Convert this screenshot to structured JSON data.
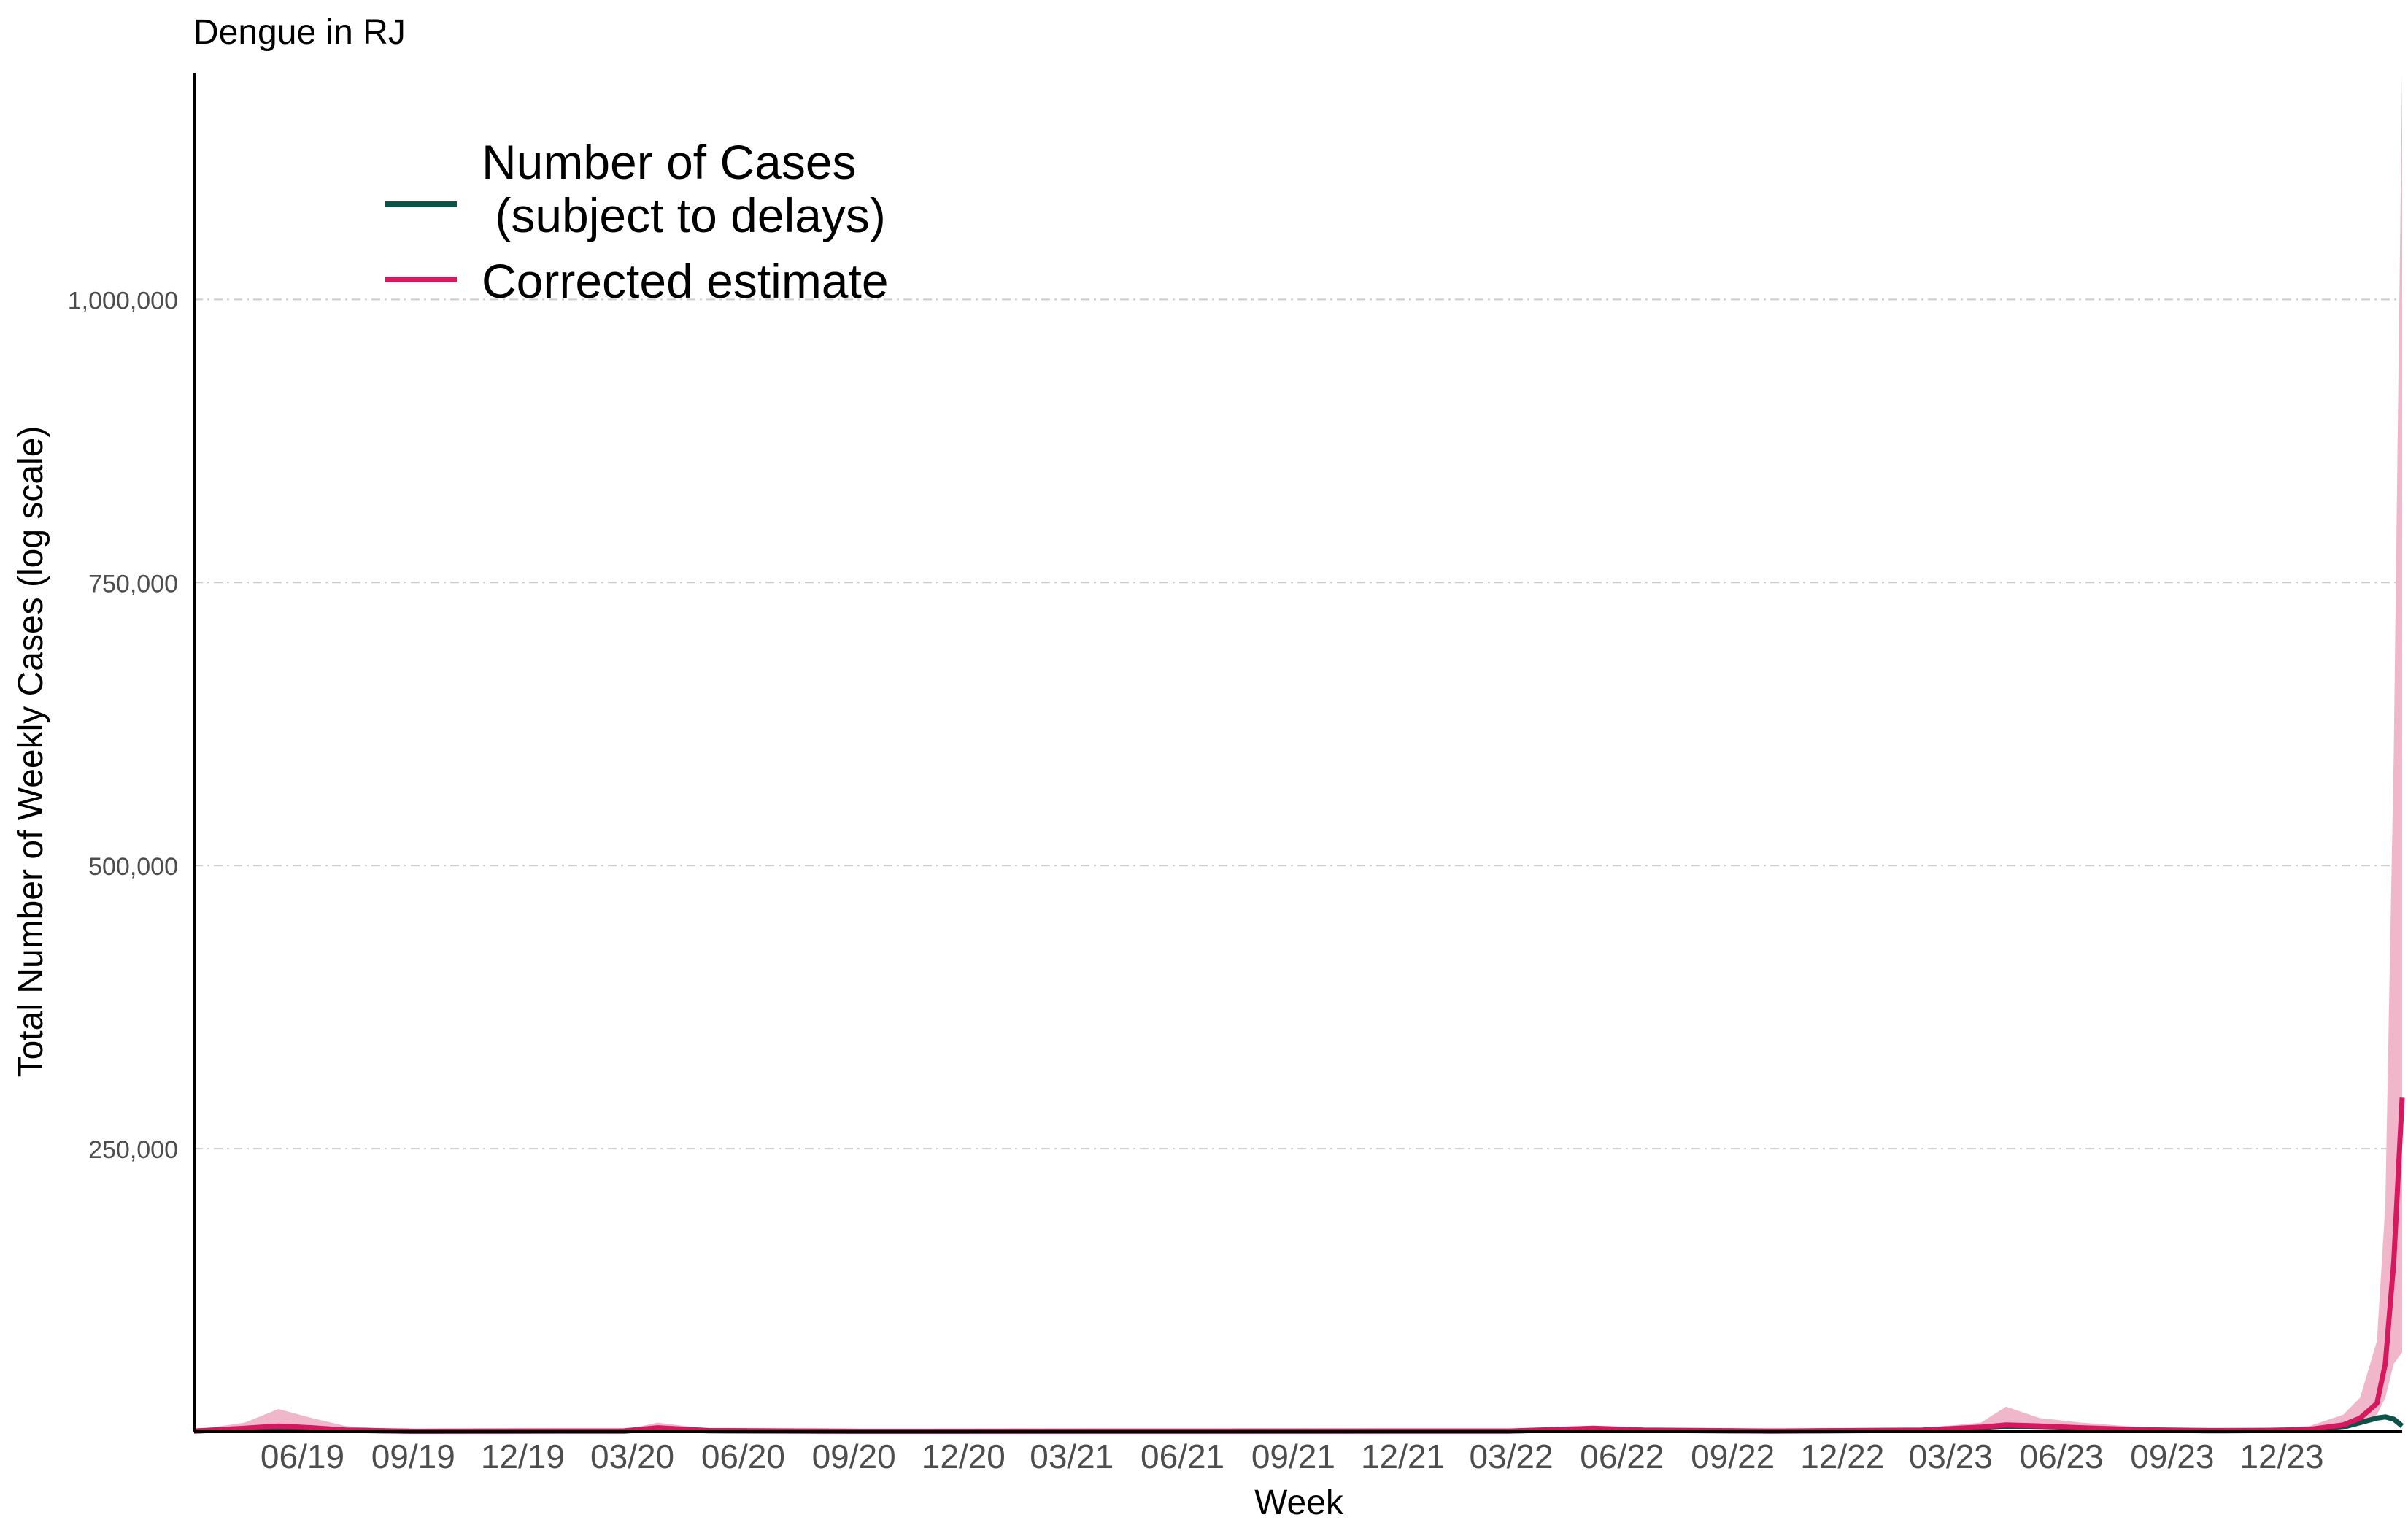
{
  "chart_data": {
    "type": "line",
    "title": "Dengue in RJ",
    "xlabel": "Week",
    "ylabel": "Total Number of Weekly Cases (log scale)",
    "x_tick_labels": [
      "06/19",
      "09/19",
      "12/19",
      "03/20",
      "06/20",
      "09/20",
      "12/20",
      "03/21",
      "06/21",
      "09/21",
      "12/21",
      "03/22",
      "06/22",
      "09/22",
      "12/22",
      "03/23",
      "06/23",
      "09/23",
      "12/23"
    ],
    "x_tick_dates": [
      "2019-06-01",
      "2019-09-01",
      "2019-12-01",
      "2020-03-01",
      "2020-06-01",
      "2020-09-01",
      "2020-12-01",
      "2021-03-01",
      "2021-06-01",
      "2021-09-01",
      "2021-12-01",
      "2022-03-01",
      "2022-06-01",
      "2022-09-01",
      "2022-12-01",
      "2023-03-01",
      "2023-06-01",
      "2023-09-01",
      "2023-12-01"
    ],
    "xlim": [
      "2019-03-03",
      "2024-03-10"
    ],
    "y_ticks": [
      250000,
      500000,
      750000,
      1000000
    ],
    "y_tick_labels": [
      "250,000",
      "500,000",
      "750,000",
      "1,000,000"
    ],
    "ylim": [
      0,
      1200000
    ],
    "grid": "horizontal dashed",
    "legend_position": "top-left",
    "colors": {
      "cases": "#0d5147",
      "estimate": "#d6185f",
      "band": "#f0b7cb",
      "grid": "#cccccc",
      "axis": "#000000"
    },
    "series": [
      {
        "name": "Number of Cases\n (subject to delays)",
        "x": [
          "2019-03-03",
          "2019-04-14",
          "2019-05-12",
          "2019-06-09",
          "2019-07-07",
          "2019-09-01",
          "2020-02-23",
          "2020-03-22",
          "2020-05-03",
          "2020-09-06",
          "2022-02-27",
          "2022-05-08",
          "2022-06-19",
          "2022-10-02",
          "2023-02-05",
          "2023-03-26",
          "2023-04-16",
          "2023-05-14",
          "2023-06-18",
          "2023-08-06",
          "2023-10-01",
          "2023-11-19",
          "2023-12-24",
          "2024-01-21",
          "2024-02-04",
          "2024-02-18",
          "2024-02-25",
          "2024-03-03",
          "2024-03-10"
        ],
        "values": [
          500,
          2500,
          3500,
          2500,
          1200,
          300,
          500,
          2500,
          800,
          300,
          500,
          2500,
          1200,
          500,
          1200,
          3000,
          4500,
          4000,
          3000,
          1500,
          800,
          1000,
          1500,
          4000,
          8000,
          12000,
          13000,
          11000,
          5000
        ]
      },
      {
        "name": "Corrected estimate",
        "x": [
          "2019-03-03",
          "2019-04-14",
          "2019-05-12",
          "2019-06-09",
          "2019-07-07",
          "2019-09-01",
          "2020-02-23",
          "2020-03-22",
          "2020-05-03",
          "2020-09-06",
          "2022-02-27",
          "2022-05-08",
          "2022-06-19",
          "2022-10-02",
          "2023-02-05",
          "2023-03-26",
          "2023-04-16",
          "2023-05-14",
          "2023-06-18",
          "2023-08-06",
          "2023-10-01",
          "2023-11-19",
          "2023-12-24",
          "2024-01-21",
          "2024-02-04",
          "2024-02-18",
          "2024-02-25",
          "2024-03-03",
          "2024-03-10"
        ],
        "values": [
          600,
          3000,
          5000,
          3500,
          1500,
          400,
          700,
          3500,
          1000,
          400,
          600,
          3000,
          1500,
          600,
          1500,
          4000,
          6000,
          5000,
          3500,
          1800,
          1000,
          1200,
          2000,
          6000,
          12000,
          25000,
          60000,
          150000,
          295000
        ],
        "lower": [
          300,
          1500,
          2500,
          1800,
          800,
          200,
          300,
          1500,
          500,
          200,
          300,
          1500,
          800,
          300,
          800,
          2000,
          3000,
          2500,
          2000,
          1000,
          500,
          600,
          1000,
          3000,
          6000,
          15000,
          30000,
          60000,
          70000
        ],
        "upper": [
          1500,
          8000,
          20000,
          12000,
          5000,
          1000,
          1500,
          8000,
          2500,
          800,
          1200,
          5000,
          3000,
          1200,
          3000,
          8000,
          22000,
          12000,
          8000,
          4000,
          2000,
          2500,
          5000,
          15000,
          30000,
          80000,
          200000,
          600000,
          1200000
        ]
      }
    ]
  }
}
